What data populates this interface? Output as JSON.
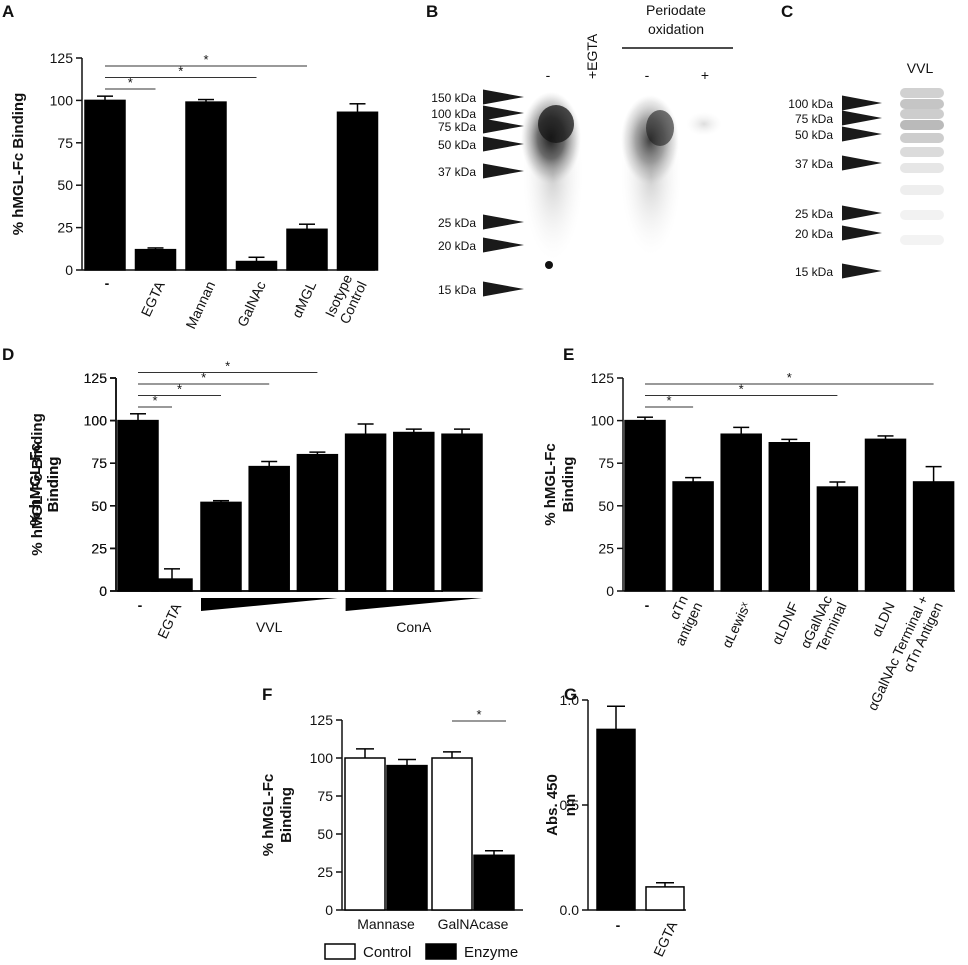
{
  "figure": {
    "panels": [
      "A",
      "B",
      "C",
      "D",
      "E",
      "F",
      "G"
    ]
  },
  "chart_data": [
    {
      "panel": "A",
      "type": "bar",
      "ylabel": "% hMGL-Fc Binding",
      "ylim": [
        0,
        125
      ],
      "yticks": [
        0,
        25,
        50,
        75,
        100,
        125
      ],
      "categories": [
        "-",
        "EGTA",
        "Mannan",
        "GalNAc",
        "αMGL",
        "Isotype Control"
      ],
      "values": [
        100,
        12,
        99,
        5,
        24,
        93
      ],
      "errors": [
        2.5,
        1,
        1.5,
        2.5,
        3,
        5
      ],
      "significance": [
        {
          "from": 0,
          "to": 1,
          "label": "*"
        },
        {
          "from": 0,
          "to": 3,
          "label": "*"
        },
        {
          "from": 0,
          "to": 4,
          "label": "*"
        }
      ]
    },
    {
      "panel": "B",
      "type": "blot",
      "group_label": "Periodate oxidation",
      "lanes": [
        "-",
        "+EGTA",
        "-",
        "+"
      ],
      "markers": [
        "150 kDa",
        "100 kDa",
        "75 kDa",
        "50 kDa",
        "37 kDa",
        "25 kDa",
        "20 kDa",
        "15 kDa"
      ]
    },
    {
      "panel": "C",
      "type": "blot",
      "lanes": [
        "VVL"
      ],
      "markers": [
        "100 kDa",
        "75 kDa",
        "50 kDa",
        "37 kDa",
        "25 kDa",
        "20 kDa",
        "15 kDa"
      ]
    },
    {
      "panel": "D",
      "type": "bar",
      "ylabel": "% hMGL-Fc Binding",
      "ylim": [
        0,
        125
      ],
      "yticks": [
        0,
        25,
        50,
        75,
        100,
        125
      ],
      "categories": [
        "-",
        "EGTA",
        "VVL",
        "VVL",
        "VVL",
        "ConA",
        "ConA",
        "ConA"
      ],
      "values": [
        100,
        7,
        52,
        73,
        80,
        92,
        93,
        92
      ],
      "errors": [
        4,
        6,
        1,
        3,
        1.5,
        6,
        2,
        3
      ],
      "groups": [
        {
          "label": "VVL",
          "bars": [
            2,
            3,
            4
          ]
        },
        {
          "label": "ConA",
          "bars": [
            5,
            6,
            7
          ]
        }
      ],
      "significance": [
        {
          "from": 0,
          "to": 1,
          "label": "*"
        },
        {
          "from": 0,
          "to": 2,
          "label": "*"
        },
        {
          "from": 0,
          "to": 3,
          "label": "*"
        },
        {
          "from": 0,
          "to": 4,
          "label": "*"
        }
      ]
    },
    {
      "panel": "E",
      "type": "bar",
      "ylabel": "% hMGL-Fc Binding",
      "ylim": [
        0,
        125
      ],
      "yticks": [
        0,
        25,
        50,
        75,
        100,
        125
      ],
      "categories": [
        "-",
        "αTn antigen",
        "αLewisˣ",
        "αLDNF",
        "αGalNAc Terminal",
        "αLDN",
        "αGalNAc Terminal + αTn Antigen"
      ],
      "values": [
        100,
        64,
        92,
        87,
        61,
        89,
        64
      ],
      "errors": [
        2,
        2.5,
        4,
        2,
        3,
        2,
        9
      ],
      "significance": [
        {
          "from": 0,
          "to": 1,
          "label": "*"
        },
        {
          "from": 0,
          "to": 4,
          "label": "*"
        },
        {
          "from": 0,
          "to": 6,
          "label": "*"
        }
      ]
    },
    {
      "panel": "F",
      "type": "bar",
      "ylabel": "% hMGL-Fc Binding",
      "ylim": [
        0,
        125
      ],
      "yticks": [
        0,
        25,
        50,
        75,
        100,
        125
      ],
      "categories": [
        "Mannase",
        "GalNAcase"
      ],
      "series": [
        {
          "name": "Control",
          "values": [
            100,
            100
          ],
          "errors": [
            6,
            4
          ],
          "fill": "#ffffff"
        },
        {
          "name": "Enzyme",
          "values": [
            95,
            36
          ],
          "errors": [
            4,
            3
          ],
          "fill": "#000000"
        }
      ],
      "legend": [
        "Control",
        "Enzyme"
      ],
      "legend_position": "bottom",
      "significance": [
        {
          "category": 1,
          "label": "*"
        }
      ]
    },
    {
      "panel": "G",
      "type": "bar",
      "ylabel": "Abs. 450 nm",
      "ylim": [
        0,
        1.0
      ],
      "yticks": [
        0.0,
        0.5,
        1.0
      ],
      "ytick_labels": [
        "0.0",
        "0.5",
        "1.0"
      ],
      "categories": [
        "-",
        "EGTA"
      ],
      "values": [
        0.86,
        0.11
      ],
      "errors": [
        0.11,
        0.02
      ],
      "fills": [
        "#000000",
        "#ffffff"
      ]
    }
  ]
}
